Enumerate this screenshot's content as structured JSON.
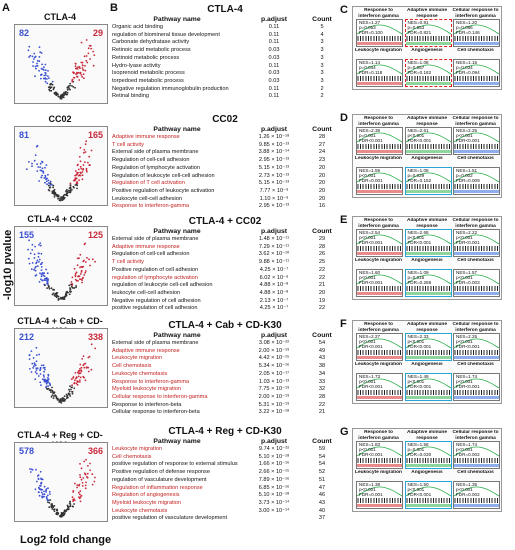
{
  "panels": {
    "A": "A",
    "B": "B",
    "C": "C",
    "D": "D",
    "E": "E",
    "F": "F",
    "G": "G"
  },
  "axis": {
    "y_title": "-log10 pvalue",
    "x_title": "Log2 fold change"
  },
  "volcano": [
    {
      "title": "CTLA-4",
      "down": "82",
      "up": "29"
    },
    {
      "title": "CC02",
      "down": "81",
      "up": "165"
    },
    {
      "title": "CTLA-4 + CC02",
      "down": "155",
      "up": "125"
    },
    {
      "title": "CTLA-4 + Cab + CD-K30",
      "down": "212",
      "up": "338"
    },
    {
      "title": "CTLA-4 + Reg + CD-K30",
      "down": "578",
      "up": "366"
    }
  ],
  "tables": [
    {
      "title": "CTLA-4",
      "headers": [
        "Pathway name",
        "p.adjust",
        "Count"
      ],
      "rows": [
        {
          "name": "Organic acid binding",
          "padj": "0.11",
          "count": "5",
          "red": false
        },
        {
          "name": "regulation of biomineral tissue development",
          "padj": "0.11",
          "count": "4",
          "red": false
        },
        {
          "name": "Carbonate dehydratase activity",
          "padj": "0.11",
          "count": "3",
          "red": false
        },
        {
          "name": "Retinoic acid metabolic process",
          "padj": "0.03",
          "count": "3",
          "red": false
        },
        {
          "name": "Retinoid metabolic process",
          "padj": "0.03",
          "count": "3",
          "red": false
        },
        {
          "name": "Hydro-lyase activity",
          "padj": "0.11",
          "count": "3",
          "red": false
        },
        {
          "name": "Isoprenoid metabolic process",
          "padj": "0.03",
          "count": "3",
          "red": false
        },
        {
          "name": "torpedoed metabolic process",
          "padj": "0.03",
          "count": "3",
          "red": false
        },
        {
          "name": "Negative regulation immunoglobulin production",
          "padj": "0.11",
          "count": "2",
          "red": false
        },
        {
          "name": "Retinal binding",
          "padj": "0.11",
          "count": "2",
          "red": false
        }
      ]
    },
    {
      "title": "CC02",
      "headers": [
        "Pathway name",
        "p.adjust",
        "Count"
      ],
      "rows": [
        {
          "name": "Adaptive immune response",
          "padj": "1.26 × 10⁻¹⁸",
          "count": "28",
          "red": true
        },
        {
          "name": "T cell activity",
          "padj": "9.85 × 10⁻¹³",
          "count": "27",
          "red": true
        },
        {
          "name": "External side of plasma membrane",
          "padj": "3.88 × 10⁻¹⁴",
          "count": "24",
          "red": false
        },
        {
          "name": "Regulation of cell-cell adhesion",
          "padj": "2.95 × 10⁻¹³",
          "count": "23",
          "red": false
        },
        {
          "name": "Regulation of lymphocyte activation",
          "padj": "5.15 × 10⁻¹³",
          "count": "20",
          "red": false
        },
        {
          "name": "Regulation of leukocyte cell-cell adhesion",
          "padj": "2.73 × 10⁻¹³",
          "count": "20",
          "red": false
        },
        {
          "name": "Regulation of T cell activation",
          "padj": "5.15 × 10⁻¹³",
          "count": "20",
          "red": true
        },
        {
          "name": "Positive regulation of leukocyte activation",
          "padj": "7.77 × 10⁻⁹",
          "count": "20",
          "red": false
        },
        {
          "name": "Leukocyte cell-cell adhesion",
          "padj": "1.10 × 10⁻⁹",
          "count": "20",
          "red": false
        },
        {
          "name": "Response to interferon-gamma",
          "padj": "2.95 × 10⁻¹³",
          "count": "16",
          "red": true
        }
      ]
    },
    {
      "title": "CTLA-4 + CC02",
      "headers": [
        "Pathway name",
        "p.adjust",
        "Count"
      ],
      "rows": [
        {
          "name": "External side of plasma membrane",
          "padj": "1.48 × 10⁻¹¹",
          "count": "29",
          "red": false
        },
        {
          "name": "Adaptive immune response",
          "padj": "7.29 × 10⁻¹¹",
          "count": "28",
          "red": true
        },
        {
          "name": "Regulation of cell-cell adhesion",
          "padj": "3.62 × 10⁻¹⁰",
          "count": "26",
          "red": false
        },
        {
          "name": "T cell activity",
          "padj": "9.88 × 10⁻¹¹",
          "count": "25",
          "red": true
        },
        {
          "name": "Positive regulation of cell adhesion",
          "padj": "4.25 × 10⁻⁷",
          "count": "22",
          "red": false
        },
        {
          "name": "regulation of lymphocyte activation",
          "padj": "6.02 × 10⁻⁹",
          "count": "22",
          "red": true
        },
        {
          "name": "regulation of leukocyte cell-cell adhesion",
          "padj": "4.88 × 10⁻⁸",
          "count": "21",
          "red": false
        },
        {
          "name": "leukocyte cell-cell adhesion",
          "padj": "4.88 × 10⁻⁸",
          "count": "20",
          "red": false
        },
        {
          "name": "Negative regulation of cell adhesion",
          "padj": "2.13 × 10⁻⁷",
          "count": "19",
          "red": false
        },
        {
          "name": "positive regulation of cell adhesion",
          "padj": "4.25 × 10⁻⁷",
          "count": "22",
          "red": false
        }
      ]
    },
    {
      "title": "CTLA-4 + Cab + CD-K30",
      "headers": [
        "Pathway name",
        "p.adjust",
        "Count"
      ],
      "rows": [
        {
          "name": "External side of plasma membrane",
          "padj": "3.08 × 10⁻²²",
          "count": "54",
          "red": false
        },
        {
          "name": "Adaptive immune response",
          "padj": "2.00 × 10⁻¹⁹",
          "count": "49",
          "red": true
        },
        {
          "name": "Leukocyte migration",
          "padj": "4.42 × 10⁻¹⁵",
          "count": "43",
          "red": true
        },
        {
          "name": "Cell chemotaxis",
          "padj": "5.34 × 10⁻¹⁶",
          "count": "38",
          "red": true
        },
        {
          "name": "Leukocyte chemotaxis",
          "padj": "2.05 × 10⁻¹⁷",
          "count": "34",
          "red": true
        },
        {
          "name": "Response to interferon-gamma",
          "padj": "1.03 × 10⁻¹³",
          "count": "33",
          "red": true
        },
        {
          "name": "Myeloid leukocyte migration",
          "padj": "7.75 × 10⁻¹⁹",
          "count": "32",
          "red": true
        },
        {
          "name": "Cellular response to interferon-gamma",
          "padj": "2.00 × 10⁻¹⁹",
          "count": "28",
          "red": true
        },
        {
          "name": "Response to interferon-beta",
          "padj": "5.31 × 10⁻¹⁹",
          "count": "22",
          "red": false
        },
        {
          "name": "Cellular response to interferon-beta",
          "padj": "3.22 × 10⁻¹⁸",
          "count": "21",
          "red": false
        }
      ]
    },
    {
      "title": "CTLA-4 + Reg + CD-K30",
      "headers": [
        "Pathway name",
        "p.adjust",
        "Count"
      ],
      "rows": [
        {
          "name": "Leukocyte migration",
          "padj": "9.74 × 10⁻²²",
          "count": "59",
          "red": true
        },
        {
          "name": "Cell chemotaxis",
          "padj": "5.10 × 10⁻¹⁸",
          "count": "54",
          "red": true
        },
        {
          "name": "positive regulation of response to external stimulus",
          "padj": "1.66 × 10⁻¹⁶",
          "count": "54",
          "red": false
        },
        {
          "name": "Positive regulation of defense response",
          "padj": "2.66 × 10⁻¹⁵",
          "count": "52",
          "red": false
        },
        {
          "name": "regulation of vasculature development",
          "padj": "7.89 × 10⁻¹⁶",
          "count": "51",
          "red": false
        },
        {
          "name": "Regulation of inflammation response",
          "padj": "6.85 × 10⁻¹⁶",
          "count": "47",
          "red": true
        },
        {
          "name": "Regulation of angiogenesis",
          "padj": "5.10 × 10⁻¹⁸",
          "count": "46",
          "red": true
        },
        {
          "name": "Myeloid leukocyte migration",
          "padj": "3.73 × 10⁻¹⁴",
          "count": "43",
          "red": true
        },
        {
          "name": "Leukocyte chemotaxis",
          "padj": "3.00 × 10⁻¹⁴",
          "count": "40",
          "red": true
        },
        {
          "name": "positive regulation of vasculature development",
          "padj": "",
          "count": "37",
          "red": false
        }
      ]
    }
  ],
  "gsea": [
    {
      "panel": "C",
      "cells": [
        {
          "name": "Response to interferon gamma",
          "stats": [
            "NES=1.27",
            "p=0.053",
            "FDR=0.100"
          ]
        },
        {
          "name": "Adaptive immune response",
          "stats": [
            "NES=0.81",
            "p=0.653",
            "FDR=0.821"
          ]
        },
        {
          "name": "Cellular response to interferon gamma",
          "stats": [
            "NES=1.20",
            "p=0.086",
            "FDR=0.146"
          ]
        },
        {
          "name": "Leukocyte migration",
          "stats": [
            "NES=1.14",
            "p=0.044",
            "FDR=0.118"
          ]
        },
        {
          "name": "Angiogenesis",
          "stats": [
            "NES=1.08",
            "p=0.057",
            "FDR=0.182"
          ]
        },
        {
          "name": "Cell chemotaxis",
          "stats": [
            "NES=1.16",
            "p=0.034",
            "FDR=0.094"
          ]
        }
      ]
    },
    {
      "panel": "D",
      "cells": [
        {
          "name": "Response to interferon gamma",
          "stats": [
            "NES=2.38",
            "p=0.001",
            "FDR<0.001"
          ]
        },
        {
          "name": "Adaptive immune response",
          "stats": [
            "NES=2.61",
            "p<0.001",
            "FDR<0.001"
          ]
        },
        {
          "name": "Cellular response to interferon gamma",
          "stats": [
            "NES=2.25",
            "p<0.001",
            "FDR<0.001"
          ]
        },
        {
          "name": "Leukocyte migration",
          "stats": [
            "NES=1.59",
            "p<0.001",
            "FDR=0.001"
          ]
        },
        {
          "name": "Angiogenesis",
          "stats": [
            "NES=1.08",
            "p=0.029",
            "FDR=0.152"
          ]
        },
        {
          "name": "Cell chemotaxis",
          "stats": [
            "NES=1.51",
            "p=0.002",
            "FDR=0.009"
          ]
        }
      ]
    },
    {
      "panel": "E",
      "cells": [
        {
          "name": "Response to interferon gamma",
          "stats": [
            "NES=2.54",
            "p<0.001",
            "FDR<0.001"
          ]
        },
        {
          "name": "Adaptive immune response",
          "stats": [
            "NES=2.65",
            "p<0.001",
            "FDR<0.001"
          ]
        },
        {
          "name": "Cellular response to interferon gamma",
          "stats": [
            "NES=2.22",
            "p<0.001",
            "FDR<0.001"
          ]
        },
        {
          "name": "Leukocyte migration",
          "stats": [
            "NES=1.60",
            "p<0.001",
            "FDR<0.001"
          ]
        },
        {
          "name": "Angiogenesis",
          "stats": [
            "NES=1.09",
            "p=0.016",
            "FDR=0.286"
          ]
        },
        {
          "name": "Cell chemotaxis",
          "stats": [
            "NES=1.57",
            "p<0.001",
            "FDR=0.003"
          ]
        }
      ]
    },
    {
      "panel": "F",
      "cells": [
        {
          "name": "Response to interferon gamma",
          "stats": [
            "NES=2.27",
            "p<0.001",
            "FDR<0.001"
          ]
        },
        {
          "name": "Adaptive immune response",
          "stats": [
            "NES=2.33",
            "p<0.001",
            "FDR<0.001"
          ]
        },
        {
          "name": "Cellular response to interferon gamma",
          "stats": [
            "NES=2.25",
            "p<0.001",
            "FDR<0.001"
          ]
        },
        {
          "name": "Leukocyte migration",
          "stats": [
            "NES=1.73",
            "p<0.001",
            "FDR<0.001"
          ]
        },
        {
          "name": "Angiogenesis",
          "stats": [
            "NES=1.49",
            "p<0.001",
            "FDR<0.001"
          ]
        },
        {
          "name": "Cell chemotaxis",
          "stats": [
            "NES=1.74",
            "p<0.001",
            "FDR<0.001"
          ]
        }
      ]
    },
    {
      "panel": "G",
      "cells": [
        {
          "name": "Response to interferon gamma",
          "stats": [
            "NES=1.83",
            "p<0.001",
            "FDR<0.001"
          ]
        },
        {
          "name": "Adaptive immune response",
          "stats": [
            "NES=1.56",
            "p=0.001",
            "FDR=0.030"
          ]
        },
        {
          "name": "Cellular response to interferon gamma",
          "stats": [
            "NES=1.74",
            "p<0.001",
            "FDR=0.002"
          ]
        },
        {
          "name": "Leukocyte migration",
          "stats": [
            "NES=1.38",
            "p<0.001",
            "FDR=0.001"
          ]
        },
        {
          "name": "Angiogenesis",
          "stats": [
            "NES=1.50",
            "p<0.001",
            "FDR<0.001"
          ]
        },
        {
          "name": "Cell chemotaxis",
          "stats": [
            "NES=1.35",
            "p<0.001",
            "FDR=0.002"
          ]
        }
      ]
    }
  ]
}
